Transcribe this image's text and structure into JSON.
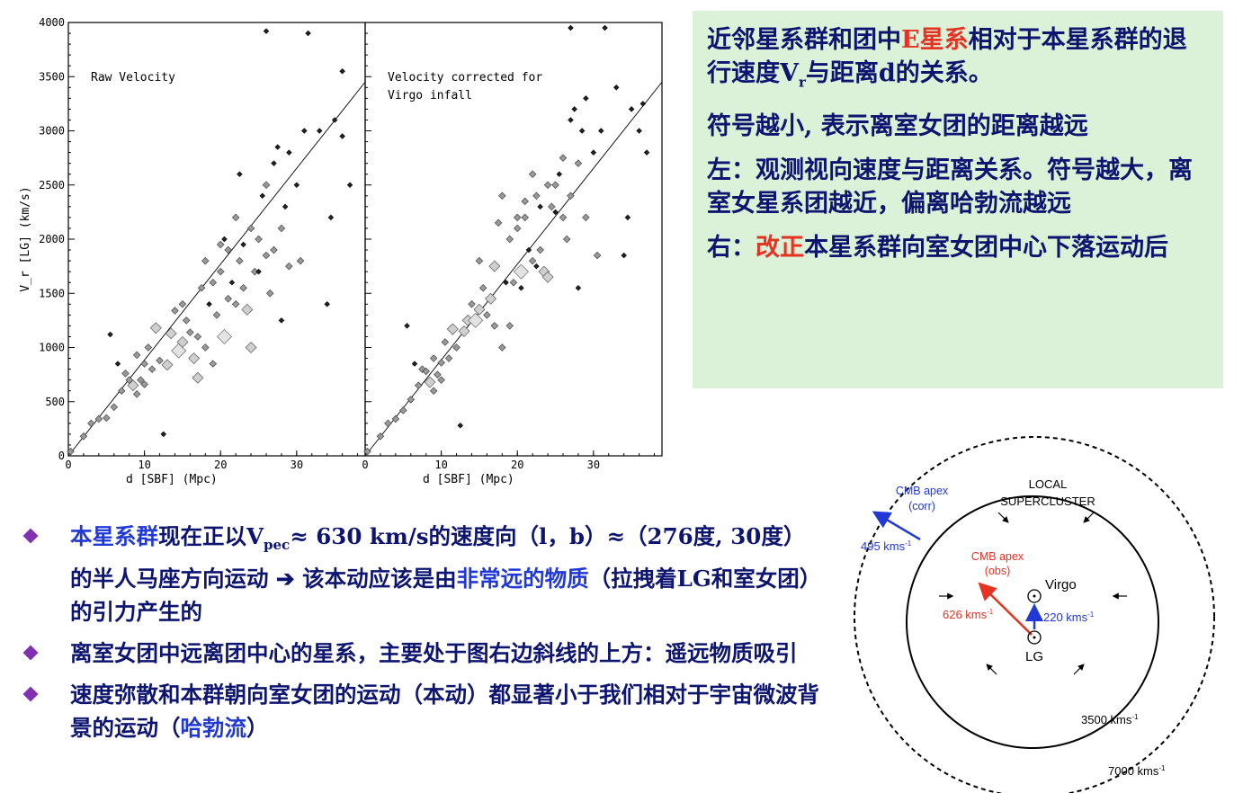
{
  "left_plot": {
    "label": "Raw Velocity",
    "ylabel": "V_r [LG] (km/s)",
    "xlabel": "d [SBF] (Mpc)"
  },
  "right_plot": {
    "label_line1": "Velocity corrected for",
    "label_line2": "Virgo infall",
    "xlabel": "d [SBF] (Mpc)"
  },
  "chart_data": [
    {
      "type": "scatter",
      "title": "Raw Velocity",
      "xlabel": "d [SBF] (Mpc)",
      "ylabel": "Vr [LG] (km/s)",
      "xlim": [
        0,
        39
      ],
      "ylim": [
        0,
        4000
      ],
      "xticks": [
        "0",
        "10",
        "20",
        "30"
      ],
      "yticks": [
        "0",
        "500",
        "1000",
        "1500",
        "2000",
        "2500",
        "3000",
        "3500",
        "4000"
      ],
      "fit_line": [
        [
          0,
          0
        ],
        [
          39,
          3450
        ]
      ],
      "points": [
        [
          0.3,
          40,
          2
        ],
        [
          2,
          180,
          2
        ],
        [
          3,
          300,
          2
        ],
        [
          4,
          340,
          2
        ],
        [
          5,
          350,
          2
        ],
        [
          5.5,
          1120,
          1
        ],
        [
          6,
          450,
          2
        ],
        [
          6.5,
          850,
          1
        ],
        [
          7,
          600,
          2
        ],
        [
          7.5,
          760,
          2
        ],
        [
          8,
          700,
          2
        ],
        [
          8.5,
          650,
          3
        ],
        [
          9,
          570,
          2
        ],
        [
          9,
          930,
          2
        ],
        [
          9.5,
          700,
          2
        ],
        [
          10,
          850,
          2
        ],
        [
          10,
          660,
          2
        ],
        [
          10.5,
          1000,
          2
        ],
        [
          11,
          800,
          2
        ],
        [
          11.5,
          1180,
          3
        ],
        [
          12,
          880,
          2
        ],
        [
          12.5,
          200,
          1
        ],
        [
          13,
          840,
          3
        ],
        [
          13.5,
          1130,
          3
        ],
        [
          14,
          1340,
          2
        ],
        [
          14.5,
          970,
          4
        ],
        [
          15,
          1050,
          3
        ],
        [
          15,
          1400,
          2
        ],
        [
          15.5,
          1250,
          2
        ],
        [
          16,
          1140,
          2
        ],
        [
          16.5,
          900,
          3
        ],
        [
          17,
          720,
          3
        ],
        [
          17,
          1100,
          2
        ],
        [
          17.5,
          1550,
          2
        ],
        [
          18,
          1800,
          2
        ],
        [
          18,
          1000,
          2
        ],
        [
          18.5,
          1400,
          1
        ],
        [
          19,
          850,
          2
        ],
        [
          19,
          1600,
          2
        ],
        [
          19.5,
          1300,
          2
        ],
        [
          20,
          1700,
          2
        ],
        [
          20,
          1950,
          2
        ],
        [
          20.5,
          2000,
          1
        ],
        [
          20.5,
          1100,
          4
        ],
        [
          21,
          1450,
          2
        ],
        [
          21,
          1900,
          2
        ],
        [
          21.5,
          1600,
          1
        ],
        [
          22,
          1400,
          2
        ],
        [
          22,
          2200,
          2
        ],
        [
          22.5,
          1800,
          2
        ],
        [
          23,
          1550,
          2
        ],
        [
          23,
          1950,
          1
        ],
        [
          23.5,
          1350,
          3
        ],
        [
          24,
          2100,
          2
        ],
        [
          24,
          1000,
          3
        ],
        [
          24.5,
          1700,
          2
        ],
        [
          25,
          1700,
          1
        ],
        [
          25,
          2000,
          2
        ],
        [
          25.5,
          2400,
          1
        ],
        [
          26,
          1850,
          2
        ],
        [
          26,
          2500,
          2
        ],
        [
          26.5,
          1500,
          2
        ],
        [
          27,
          2700,
          1
        ],
        [
          27,
          1900,
          2
        ],
        [
          27.5,
          2850,
          1
        ],
        [
          28,
          2100,
          2
        ],
        [
          28,
          1250,
          1
        ],
        [
          28.5,
          2300,
          1
        ],
        [
          29,
          1750,
          2
        ],
        [
          29,
          2800,
          1
        ],
        [
          30,
          2500,
          1
        ],
        [
          30.5,
          1800,
          2
        ],
        [
          31,
          3000,
          1
        ],
        [
          31.5,
          3900,
          1
        ],
        [
          33,
          3000,
          1
        ],
        [
          34,
          1400,
          1
        ],
        [
          34.5,
          2200,
          1
        ],
        [
          35,
          3100,
          1
        ],
        [
          36,
          2950,
          1
        ],
        [
          36,
          3550,
          1
        ],
        [
          37,
          2500,
          1
        ],
        [
          26,
          3920,
          1
        ],
        [
          22.5,
          2600,
          1
        ]
      ]
    },
    {
      "type": "scatter",
      "title": "Velocity corrected for Virgo infall",
      "xlabel": "d [SBF] (Mpc)",
      "ylabel": "",
      "xlim": [
        0,
        39
      ],
      "ylim": [
        0,
        4000
      ],
      "xticks": [
        "0",
        "10",
        "20",
        "30"
      ],
      "fit_line": [
        [
          0,
          0
        ],
        [
          39,
          3450
        ]
      ],
      "points": [
        [
          0.3,
          40,
          2
        ],
        [
          2,
          180,
          2
        ],
        [
          3,
          300,
          2
        ],
        [
          4,
          340,
          2
        ],
        [
          5,
          420,
          2
        ],
        [
          5.5,
          1200,
          1
        ],
        [
          6,
          520,
          2
        ],
        [
          6.5,
          850,
          1
        ],
        [
          7,
          650,
          2
        ],
        [
          7.5,
          800,
          2
        ],
        [
          8,
          780,
          2
        ],
        [
          8.5,
          680,
          3
        ],
        [
          9,
          600,
          2
        ],
        [
          9,
          900,
          2
        ],
        [
          9.5,
          750,
          2
        ],
        [
          10,
          860,
          2
        ],
        [
          10,
          700,
          2
        ],
        [
          10.5,
          1050,
          2
        ],
        [
          11,
          900,
          2
        ],
        [
          11.5,
          1170,
          3
        ],
        [
          12,
          1000,
          2
        ],
        [
          12.5,
          280,
          1
        ],
        [
          13,
          1150,
          3
        ],
        [
          13.5,
          1250,
          3
        ],
        [
          14,
          1400,
          2
        ],
        [
          14.5,
          1250,
          4
        ],
        [
          15,
          1350,
          3
        ],
        [
          15,
          1800,
          2
        ],
        [
          15.5,
          1550,
          2
        ],
        [
          16,
          1300,
          2
        ],
        [
          16.5,
          1450,
          3
        ],
        [
          17,
          1750,
          3
        ],
        [
          17,
          1200,
          2
        ],
        [
          17.5,
          2150,
          2
        ],
        [
          18,
          2400,
          2
        ],
        [
          18,
          1000,
          2
        ],
        [
          18.5,
          1600,
          1
        ],
        [
          19,
          1200,
          2
        ],
        [
          19,
          2000,
          2
        ],
        [
          19.5,
          1600,
          2
        ],
        [
          20,
          2100,
          2
        ],
        [
          20,
          2200,
          2
        ],
        [
          20.5,
          1550,
          1
        ],
        [
          20.5,
          1700,
          4
        ],
        [
          21,
          2200,
          2
        ],
        [
          21,
          2350,
          2
        ],
        [
          21.5,
          1900,
          1
        ],
        [
          22,
          1800,
          2
        ],
        [
          22,
          2600,
          2
        ],
        [
          22.5,
          2400,
          2
        ],
        [
          23,
          1900,
          2
        ],
        [
          23,
          2300,
          1
        ],
        [
          23.5,
          1700,
          3
        ],
        [
          24,
          2500,
          2
        ],
        [
          24,
          1650,
          3
        ],
        [
          24.5,
          2300,
          2
        ],
        [
          25,
          2250,
          1
        ],
        [
          25,
          2500,
          2
        ],
        [
          25.5,
          2600,
          1
        ],
        [
          26,
          2200,
          2
        ],
        [
          26,
          2750,
          2
        ],
        [
          26.5,
          2000,
          2
        ],
        [
          27,
          3100,
          1
        ],
        [
          27,
          2400,
          2
        ],
        [
          27.5,
          3200,
          1
        ],
        [
          28,
          2700,
          2
        ],
        [
          28,
          1550,
          1
        ],
        [
          28.5,
          3000,
          1
        ],
        [
          29,
          2200,
          2
        ],
        [
          29,
          3300,
          1
        ],
        [
          30,
          2800,
          1
        ],
        [
          30.5,
          1850,
          2
        ],
        [
          31,
          3000,
          1
        ],
        [
          31.5,
          3950,
          1
        ],
        [
          33,
          3400,
          1
        ],
        [
          34,
          1850,
          1
        ],
        [
          34.5,
          2200,
          1
        ],
        [
          35,
          3200,
          1
        ],
        [
          36,
          3000,
          1
        ],
        [
          36.5,
          3250,
          1
        ],
        [
          37,
          2800,
          1
        ],
        [
          27,
          3950,
          1
        ],
        [
          22.5,
          1750,
          1
        ]
      ]
    }
  ],
  "notes": {
    "p1_a": "近邻星系群和团中",
    "p1_red": "E星系",
    "p1_b": "相对于本星系群的退行速度",
    "p1_v": "V",
    "p1_vsub": "r",
    "p1_c": "与距离",
    "p1_d": "d",
    "p1_e": "的关系。",
    "p2": "符号越小, 表示离室女团的距离越远",
    "p3": "左：观测视向速度与距离关系。符号越大，离室女星系团越近，偏离哈勃流越远",
    "p4_a": "右：",
    "p4_red": "改正",
    "p4_b": "本星系群向室女团中心下落运动后"
  },
  "bullets": {
    "b1_blue1": "本星系群",
    "b1_a": "现在正以V",
    "b1_sub": "pec",
    "b1_b": "≈ 630 km/s的速度向（l，b）≈（276度, 30度）的半人马座方向运动 ➔ 该本动应该是由",
    "b1_blue2": "非常远的物质",
    "b1_c": "（拉拽着LG和室女团）的引力产生的",
    "b2": "离室女团中远离团中心的星系，主要处于图右边斜线的上方：遥远物质吸引",
    "b3_a": "速度弥散和本群朝向室女团的运动（本动）都显著小于我们相对于宇宙微波背景的运动（",
    "b3_blue": "哈勃流",
    "b3_b": "）"
  },
  "diagram": {
    "local_line1": "LOCAL",
    "local_line2": "SUPERCLUSTER",
    "cmb_corr_line1": "CMB apex",
    "cmb_corr_line2": "(corr)",
    "cmb_corr_speed": "495 kms",
    "cmb_obs_line1": "CMB apex",
    "cmb_obs_line2": "(obs)",
    "obs_speed": "626 kms",
    "virgo": "Virgo",
    "virgo_speed": "220 kms",
    "lg": "LG",
    "r_inner": "3500 kms",
    "r_outer": "7000 kms",
    "superscript": "-1",
    "colors": {
      "red": "#e63222",
      "blue": "#1f38d6"
    }
  }
}
